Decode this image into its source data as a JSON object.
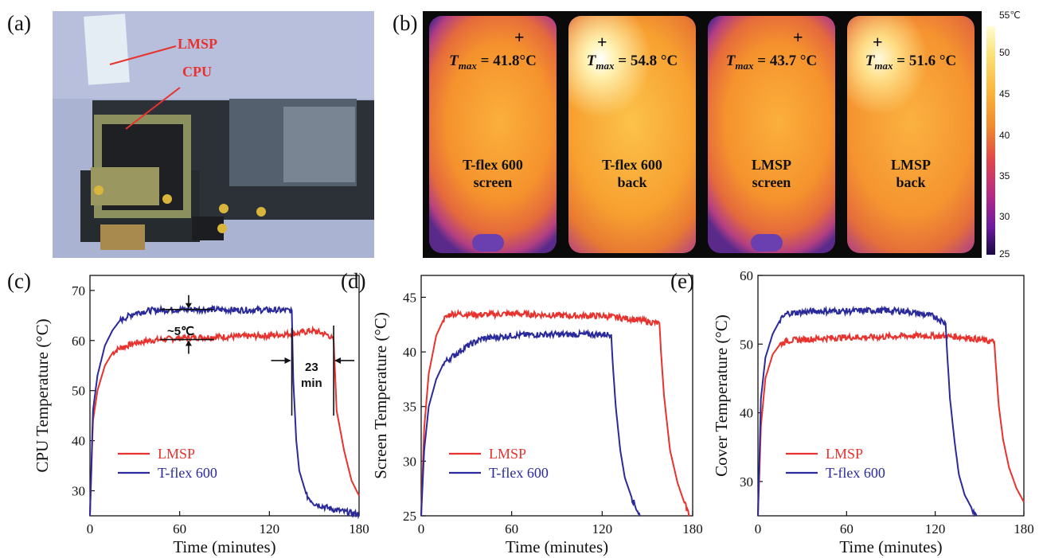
{
  "panels": {
    "a": {
      "letter": "(a)",
      "labels": [
        "LMSP",
        "CPU"
      ]
    },
    "b": {
      "letter": "(b)",
      "phones": [
        {
          "tmax": "41.8",
          "unit": "°C",
          "caption": [
            "T-flex 600",
            "screen"
          ]
        },
        {
          "tmax": "54.8",
          "unit": " °C",
          "caption": [
            "T-flex 600",
            "back"
          ]
        },
        {
          "tmax": "43.7",
          "unit": " °C",
          "caption": [
            "LMSP",
            "screen"
          ]
        },
        {
          "tmax": "51.6",
          "unit": " °C",
          "caption": [
            "LMSP",
            "back"
          ]
        }
      ],
      "tmax_prefix": "T",
      "tmax_sub": "max",
      "colorbar": {
        "min": 25,
        "max": 55,
        "top_label": "55℃",
        "ticks": [
          "50",
          "45",
          "40",
          "35",
          "30",
          "25"
        ]
      }
    },
    "c": {
      "letter": "(c)"
    },
    "d": {
      "letter": "(d)"
    },
    "e": {
      "letter": "(e)"
    }
  },
  "colors": {
    "lmsp": "#e8322e",
    "tflex": "#2a2a9a"
  },
  "chart_data": [
    {
      "type": "line",
      "panel": "c",
      "xlabel": "Time (minutes)",
      "ylabel": "CPU Temperature (°C)",
      "xlim": [
        0,
        180
      ],
      "ylim": [
        25,
        73
      ],
      "xticks": [
        0,
        60,
        120,
        180
      ],
      "yticks": [
        30,
        40,
        50,
        60,
        70
      ],
      "series": [
        {
          "name": "LMSP",
          "x": [
            0,
            2,
            5,
            10,
            15,
            20,
            30,
            40,
            60,
            80,
            100,
            120,
            140,
            148,
            155,
            160,
            163,
            165,
            170,
            175,
            180
          ],
          "y": [
            25,
            44,
            50,
            55,
            57.5,
            58.5,
            59.5,
            60,
            60.5,
            60.7,
            60.8,
            61,
            61.5,
            62,
            61.5,
            61,
            60,
            46,
            38,
            32,
            29
          ]
        },
        {
          "name": "T-flex 600",
          "x": [
            0,
            2,
            5,
            10,
            15,
            20,
            30,
            40,
            60,
            80,
            100,
            120,
            135,
            136,
            138,
            140,
            145,
            150,
            160,
            170,
            180
          ],
          "y": [
            25,
            46,
            53,
            59,
            62,
            64,
            65.5,
            66,
            66.2,
            66.2,
            66.1,
            66.1,
            66,
            52,
            40,
            34,
            29,
            27.5,
            26.5,
            25.8,
            25.3
          ]
        }
      ],
      "annotations": {
        "delta": "~5℃",
        "lag": [
          "23",
          "min"
        ]
      }
    },
    {
      "type": "line",
      "panel": "d",
      "xlabel": "Time (minutes)",
      "ylabel": "Screen Temperature (°C)",
      "xlim": [
        0,
        180
      ],
      "ylim": [
        25,
        47
      ],
      "xticks": [
        0,
        60,
        120,
        180
      ],
      "yticks": [
        25,
        30,
        35,
        40,
        45
      ],
      "series": [
        {
          "name": "LMSP",
          "x": [
            0,
            2,
            5,
            10,
            15,
            20,
            40,
            60,
            80,
            100,
            120,
            140,
            158,
            159,
            161,
            165,
            170,
            175,
            178
          ],
          "y": [
            25,
            33,
            38,
            41.5,
            43,
            43.5,
            43.4,
            43.5,
            43.4,
            43.3,
            43.3,
            43,
            42.6,
            40,
            36,
            31,
            28,
            26,
            25
          ]
        },
        {
          "name": "T-flex 600",
          "x": [
            0,
            2,
            5,
            10,
            15,
            20,
            30,
            40,
            60,
            80,
            100,
            120,
            126,
            127,
            129,
            132,
            135,
            140,
            145
          ],
          "y": [
            25,
            31,
            35,
            37.5,
            39,
            39.5,
            40.5,
            41.2,
            41.5,
            41.6,
            41.6,
            41.6,
            41.6,
            39,
            35,
            31,
            28.5,
            26.5,
            25
          ]
        }
      ]
    },
    {
      "type": "line",
      "panel": "e",
      "xlabel": "Time (minutes)",
      "ylabel": "Cover Temperature (°C)",
      "xlim": [
        0,
        180
      ],
      "ylim": [
        25,
        60
      ],
      "xticks": [
        0,
        60,
        120,
        180
      ],
      "yticks": [
        30,
        40,
        50,
        60
      ],
      "series": [
        {
          "name": "LMSP",
          "x": [
            0,
            2,
            5,
            10,
            15,
            20,
            40,
            60,
            80,
            100,
            120,
            140,
            160,
            161,
            163,
            166,
            170,
            175,
            180
          ],
          "y": [
            25,
            38,
            45,
            48.5,
            50,
            50.5,
            50.8,
            51,
            51,
            51.2,
            51.2,
            51,
            50.3,
            47,
            41,
            36,
            32,
            29,
            27
          ]
        },
        {
          "name": "T-flex 600",
          "x": [
            0,
            2,
            5,
            10,
            15,
            20,
            40,
            60,
            80,
            100,
            120,
            127,
            128,
            130,
            133,
            136,
            140,
            145,
            148
          ],
          "y": [
            25,
            42,
            48,
            51.5,
            53.5,
            54.5,
            54.8,
            54.8,
            54.9,
            54.8,
            54,
            53,
            49,
            42,
            36,
            31,
            28,
            26,
            25
          ]
        }
      ]
    }
  ]
}
